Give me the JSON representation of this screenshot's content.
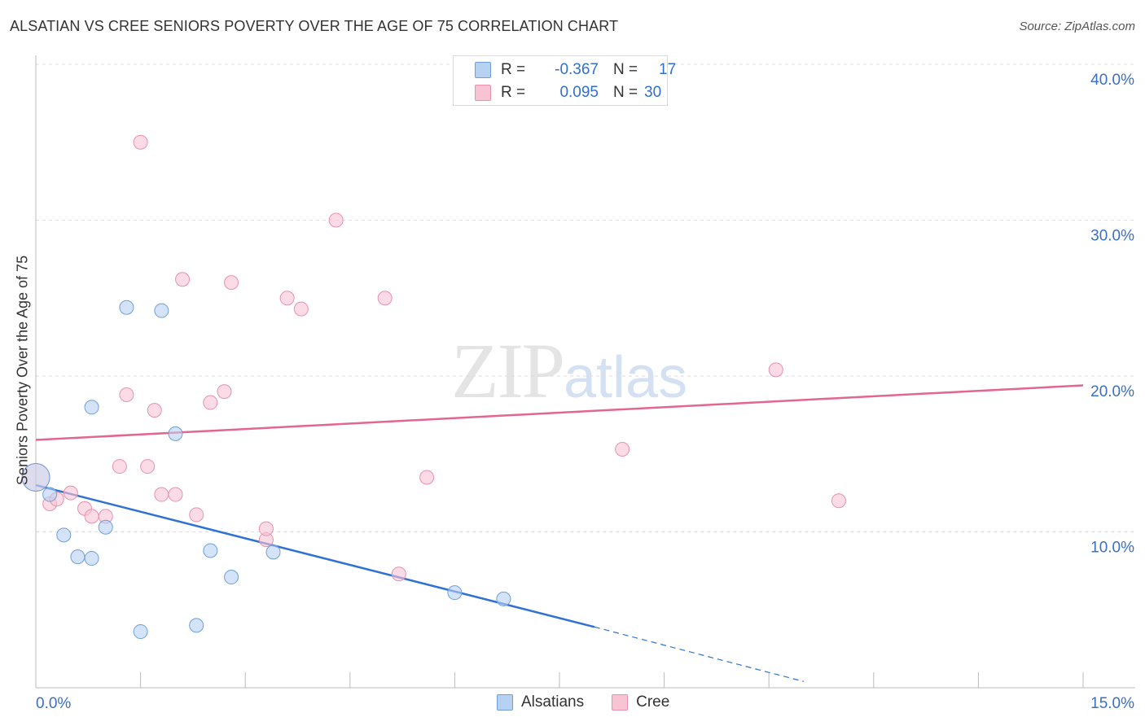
{
  "title": "ALSATIAN VS CREE SENIORS POVERTY OVER THE AGE OF 75 CORRELATION CHART",
  "source": "Source: ZipAtlas.com",
  "watermark": {
    "zip": "ZIP",
    "atlas": "atlas"
  },
  "legend": {
    "alsatians": {
      "r_label": "R =",
      "r_value": "-0.367",
      "n_label": "N =",
      "n_value": "17"
    },
    "cree": {
      "r_label": "R =",
      "r_value": "0.095",
      "n_label": "N =",
      "n_value": "30"
    }
  },
  "colors": {
    "alsatians_fill": "#b7d1f2",
    "alsatians_stroke": "#6f9fd8",
    "alsatians_line": "#2f72d3",
    "cree_fill": "#f8c3d3",
    "cree_stroke": "#e891ad",
    "cree_line": "#e26690",
    "grid": "#dddddd",
    "axis_text": "#3a6fc4"
  },
  "chart_data": {
    "type": "scatter",
    "title": "ALSATIAN VS CREE SENIORS POVERTY OVER THE AGE OF 75 CORRELATION CHART",
    "xlabel": "",
    "ylabel": "Seniors Poverty Over the Age of 75",
    "xlim": [
      0,
      15
    ],
    "ylim": [
      0,
      40
    ],
    "x_tick_labels": [
      "0.0%",
      "15.0%"
    ],
    "y_ticks": [
      10,
      20,
      30,
      40
    ],
    "y_tick_labels": [
      "10.0%",
      "20.0%",
      "30.0%",
      "40.0%"
    ],
    "series": [
      {
        "name": "Alsatians",
        "points": [
          [
            0.0,
            13.5
          ],
          [
            0.2,
            12.4
          ],
          [
            0.4,
            9.8
          ],
          [
            0.6,
            8.4
          ],
          [
            0.8,
            8.3
          ],
          [
            0.8,
            18.0
          ],
          [
            1.0,
            10.3
          ],
          [
            1.3,
            24.4
          ],
          [
            1.5,
            3.6
          ],
          [
            1.8,
            24.2
          ],
          [
            2.0,
            16.3
          ],
          [
            2.3,
            4.0
          ],
          [
            2.5,
            8.8
          ],
          [
            2.8,
            7.1
          ],
          [
            3.4,
            8.7
          ],
          [
            6.0,
            6.1
          ],
          [
            6.7,
            5.7
          ]
        ],
        "trend": {
          "x": [
            0,
            8.0
          ],
          "y": [
            13.0,
            3.9
          ],
          "dashed_x": [
            8.0,
            11.0
          ],
          "dashed_y": [
            3.9,
            0.4
          ]
        }
      },
      {
        "name": "Cree",
        "points": [
          [
            0.0,
            13.5
          ],
          [
            0.2,
            11.8
          ],
          [
            0.3,
            12.1
          ],
          [
            0.5,
            12.5
          ],
          [
            0.7,
            11.5
          ],
          [
            0.8,
            11.0
          ],
          [
            1.0,
            11.0
          ],
          [
            1.2,
            14.2
          ],
          [
            1.3,
            18.8
          ],
          [
            1.5,
            35.0
          ],
          [
            1.6,
            14.2
          ],
          [
            1.7,
            17.8
          ],
          [
            1.8,
            12.4
          ],
          [
            2.0,
            12.4
          ],
          [
            2.1,
            26.2
          ],
          [
            2.3,
            11.1
          ],
          [
            2.5,
            18.3
          ],
          [
            2.7,
            19.0
          ],
          [
            2.8,
            26.0
          ],
          [
            3.3,
            9.5
          ],
          [
            3.3,
            10.2
          ],
          [
            3.6,
            25.0
          ],
          [
            3.8,
            24.3
          ],
          [
            4.3,
            30.0
          ],
          [
            5.0,
            25.0
          ],
          [
            5.2,
            7.3
          ],
          [
            5.6,
            13.5
          ],
          [
            8.4,
            15.3
          ],
          [
            10.6,
            20.4
          ],
          [
            11.5,
            12.0
          ]
        ],
        "trend": {
          "x": [
            0,
            15
          ],
          "y": [
            15.9,
            19.4
          ]
        }
      }
    ]
  }
}
